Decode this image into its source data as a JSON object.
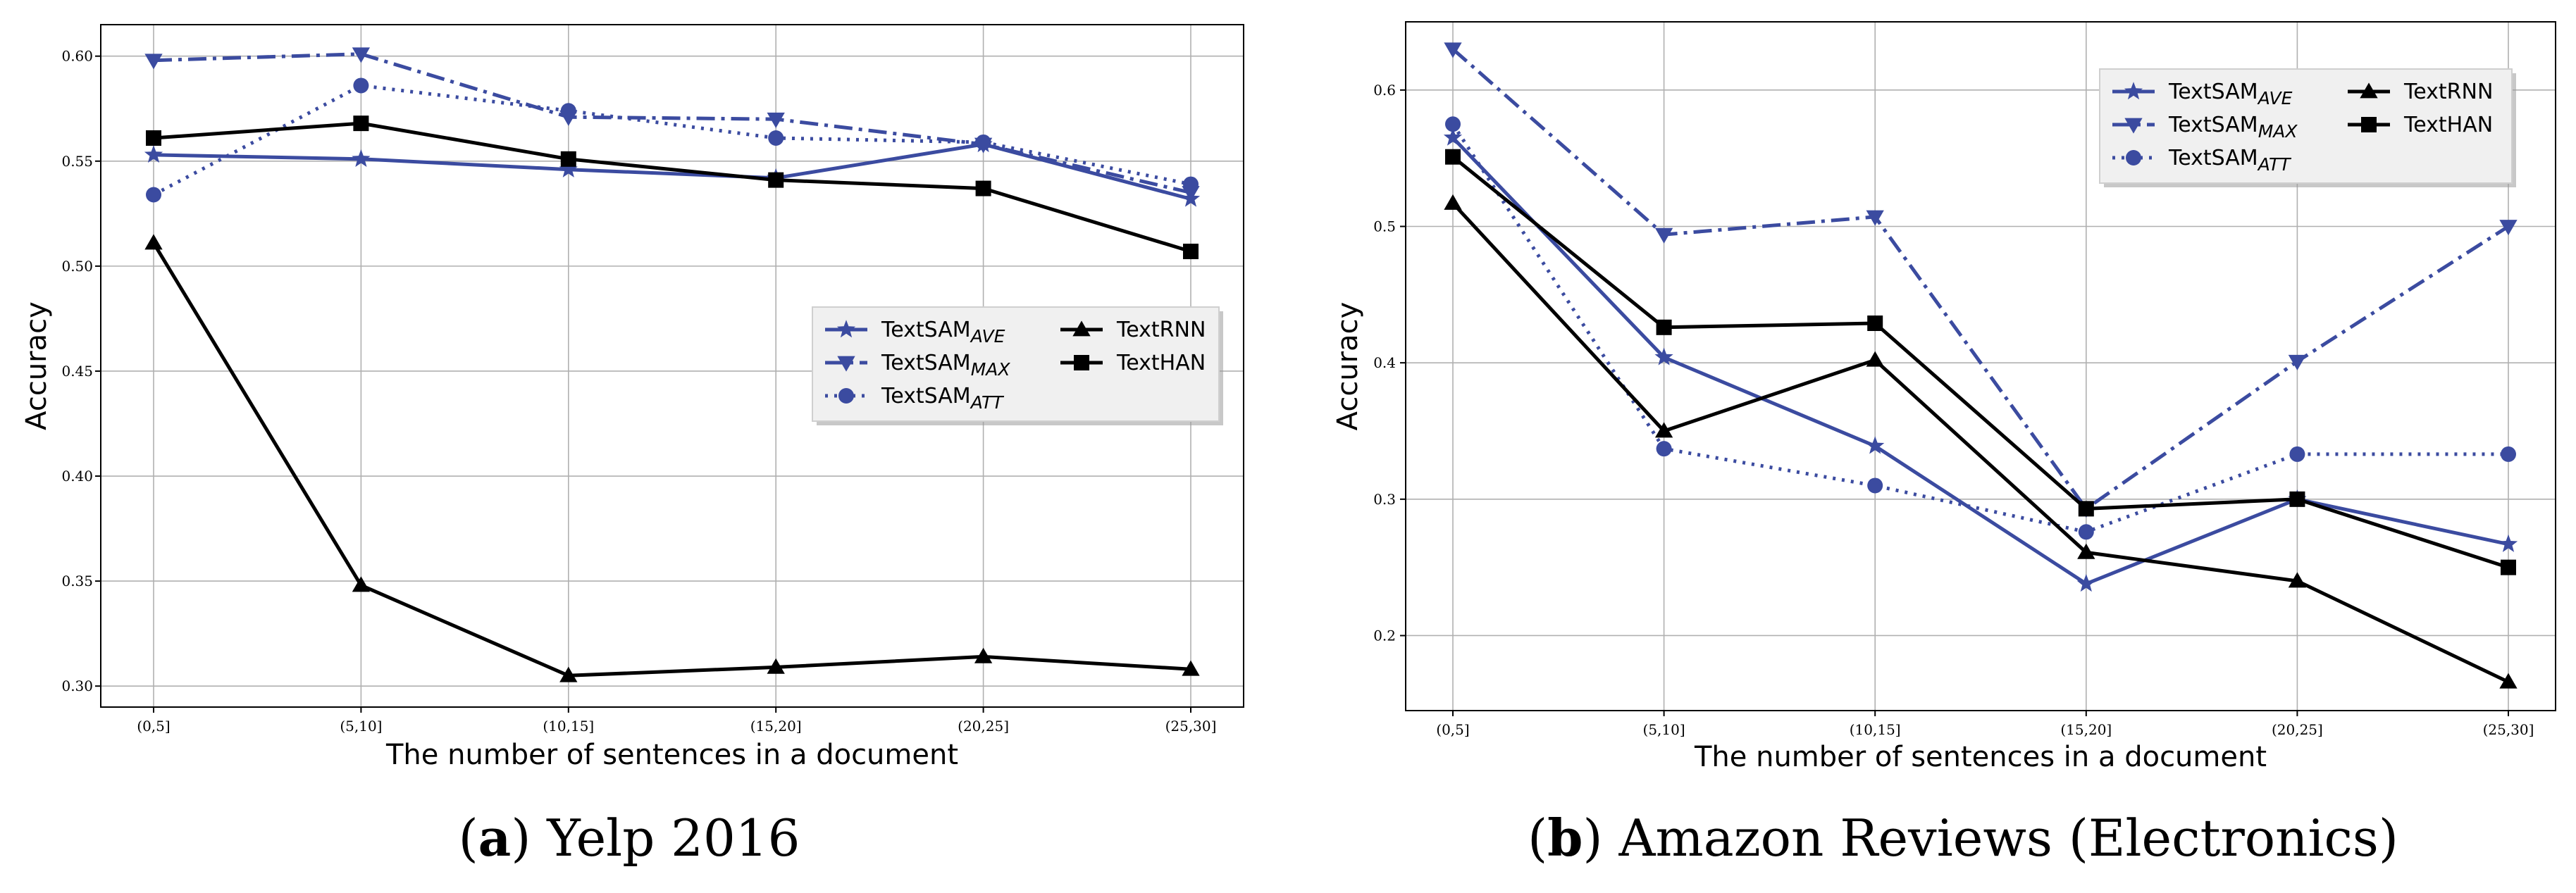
{
  "chart_data": [
    {
      "type": "line",
      "panel_label": "a",
      "title": "Yelp 2016",
      "xlabel": "The number of sentences in a document",
      "ylabel": "Accuracy",
      "categories": [
        "(0,5]",
        "(5,10]",
        "(10,15]",
        "(15,20]",
        "(20,25]",
        "(25,30]"
      ],
      "ylim": [
        0.29,
        0.615
      ],
      "yticks": [
        0.3,
        0.35,
        0.4,
        0.45,
        0.5,
        0.55,
        0.6
      ],
      "ytick_labels": [
        "0.30",
        "0.35",
        "0.40",
        "0.45",
        "0.50",
        "0.55",
        "0.60"
      ],
      "grid": true,
      "legend_position": "center-right",
      "series": [
        {
          "name": "TextSAM",
          "sub": "AVE",
          "values": [
            0.553,
            0.551,
            0.546,
            0.542,
            0.558,
            0.532
          ],
          "color": "#3b4ba0",
          "dash": "solid",
          "marker": "star"
        },
        {
          "name": "TextSAM",
          "sub": "MAX",
          "values": [
            0.598,
            0.601,
            0.571,
            0.57,
            0.558,
            0.535
          ],
          "color": "#3b4ba0",
          "dash": "dashdot",
          "marker": "triangle-down"
        },
        {
          "name": "TextSAM",
          "sub": "ATT",
          "values": [
            0.534,
            0.586,
            0.574,
            0.561,
            0.559,
            0.539
          ],
          "color": "#3b4ba0",
          "dash": "dotted",
          "marker": "circle"
        },
        {
          "name": "TextRNN",
          "sub": "",
          "values": [
            0.511,
            0.348,
            0.305,
            0.309,
            0.314,
            0.308
          ],
          "color": "#000000",
          "dash": "solid",
          "marker": "triangle-up"
        },
        {
          "name": "TextHAN",
          "sub": "",
          "values": [
            0.561,
            0.568,
            0.551,
            0.541,
            0.537,
            0.507
          ],
          "color": "#000000",
          "dash": "solid",
          "marker": "square"
        }
      ]
    },
    {
      "type": "line",
      "panel_label": "b",
      "title": "Amazon Reviews (Electronics)",
      "xlabel": "The number of sentences in a document",
      "ylabel": "Accuracy",
      "categories": [
        "(0,5]",
        "(5,10]",
        "(10,15]",
        "(15,20]",
        "(20,25]",
        "(25,30]"
      ],
      "ylim": [
        0.145,
        0.65
      ],
      "yticks": [
        0.2,
        0.3,
        0.4,
        0.5,
        0.6
      ],
      "ytick_labels": [
        "0.2",
        "0.3",
        "0.4",
        "0.5",
        "0.6"
      ],
      "grid": true,
      "legend_position": "top-right",
      "series": [
        {
          "name": "TextSAM",
          "sub": "AVE",
          "values": [
            0.565,
            0.404,
            0.339,
            0.238,
            0.3,
            0.267
          ],
          "color": "#3b4ba0",
          "dash": "solid",
          "marker": "star"
        },
        {
          "name": "TextSAM",
          "sub": "MAX",
          "values": [
            0.63,
            0.494,
            0.507,
            0.293,
            0.401,
            0.5
          ],
          "color": "#3b4ba0",
          "dash": "dashdot",
          "marker": "triangle-down"
        },
        {
          "name": "TextSAM",
          "sub": "ATT",
          "values": [
            0.575,
            0.337,
            0.31,
            0.276,
            0.333,
            0.333
          ],
          "color": "#3b4ba0",
          "dash": "dotted",
          "marker": "circle"
        },
        {
          "name": "TextRNN",
          "sub": "",
          "values": [
            0.517,
            0.35,
            0.402,
            0.261,
            0.24,
            0.166
          ],
          "color": "#000000",
          "dash": "solid",
          "marker": "triangle-up"
        },
        {
          "name": "TextHAN",
          "sub": "",
          "values": [
            0.551,
            0.426,
            0.429,
            0.293,
            0.3,
            0.25
          ],
          "color": "#000000",
          "dash": "solid",
          "marker": "square"
        }
      ]
    }
  ]
}
